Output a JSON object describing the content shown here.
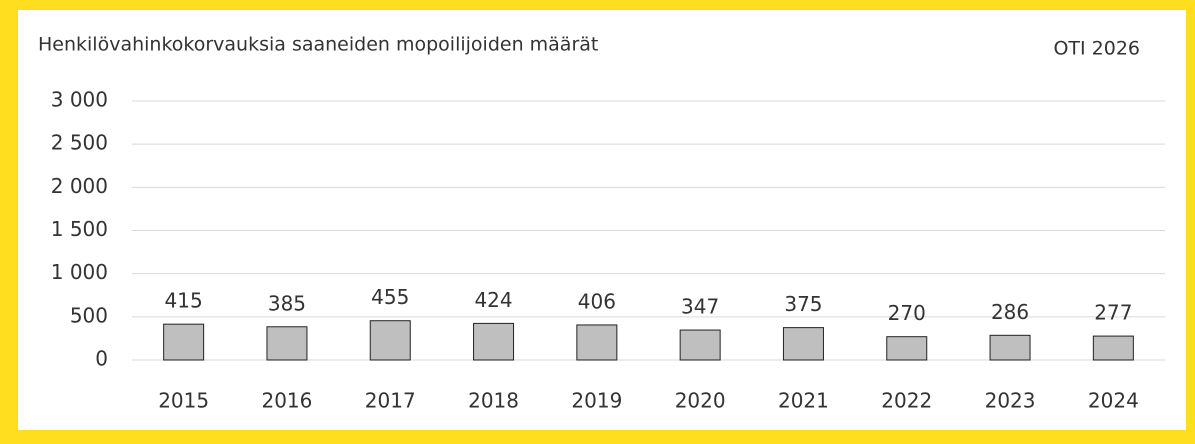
{
  "chart_data": {
    "type": "bar",
    "title": "Henkilövahinkokorvauksia saaneiden mopoilijoiden määrät",
    "annotation": "OTI 2026",
    "categories": [
      "2015",
      "2016",
      "2017",
      "2018",
      "2019",
      "2020",
      "2021",
      "2022",
      "2023",
      "2024"
    ],
    "values": [
      415,
      385,
      455,
      424,
      406,
      347,
      375,
      270,
      286,
      277
    ],
    "color": "#bfbfbf",
    "ylim": [
      0,
      3000
    ],
    "yticks": [
      0,
      500,
      {
        "value": 1000,
        "label": "1 000"
      },
      {
        "value": 1500,
        "label": "1 500"
      },
      {
        "value": 2000,
        "label": "2 000"
      },
      {
        "value": 2500,
        "label": "2 500"
      },
      {
        "value": 3000,
        "label": "3 000"
      }
    ],
    "grid": true
  }
}
